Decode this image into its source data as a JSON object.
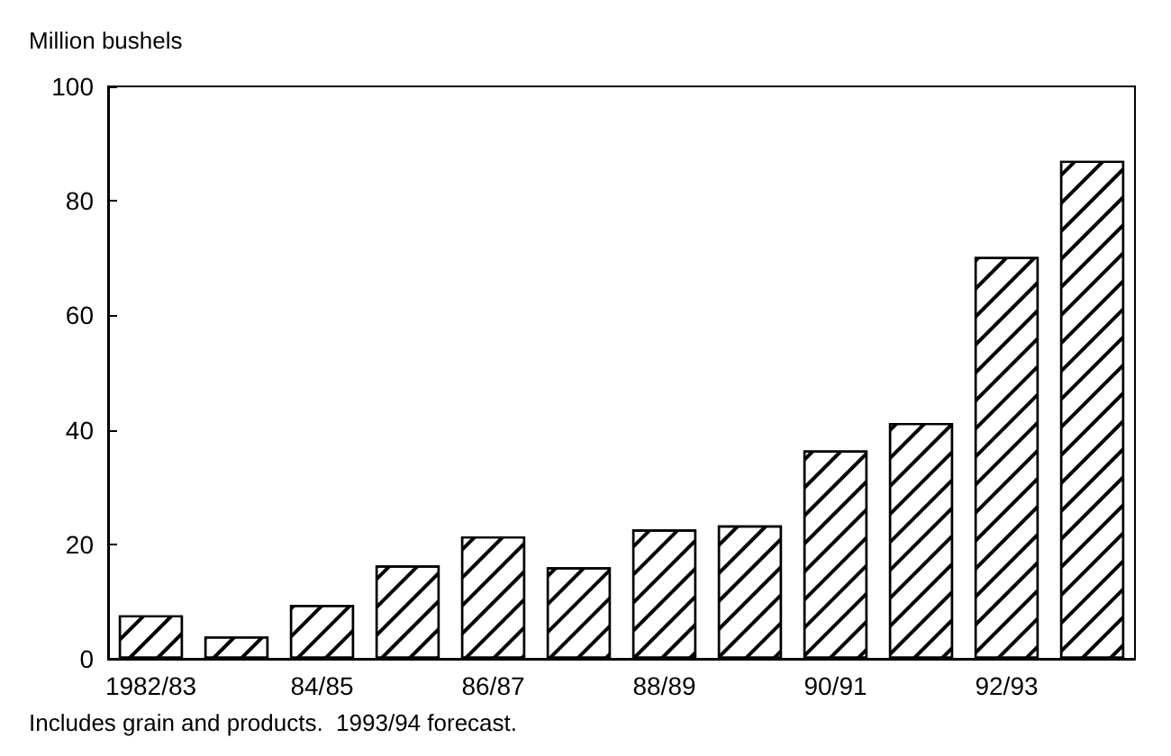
{
  "chart_data": {
    "type": "bar",
    "ylabel": "Million bushels",
    "categories": [
      "1982/83",
      null,
      "84/85",
      null,
      "86/87",
      null,
      "88/89",
      null,
      "90/91",
      null,
      "92/93",
      null
    ],
    "values": [
      7.6,
      3.9,
      9.4,
      16.3,
      21.4,
      16,
      22.6,
      23.3,
      36.4,
      41.2,
      70.2,
      87
    ],
    "color": "#ffffff",
    "ylim": [
      0,
      100
    ],
    "yticks": [
      0,
      20,
      40,
      60,
      80,
      100
    ],
    "grid": false,
    "annotations": [
      "Includes grain and products.  1993/94 forecast."
    ]
  }
}
